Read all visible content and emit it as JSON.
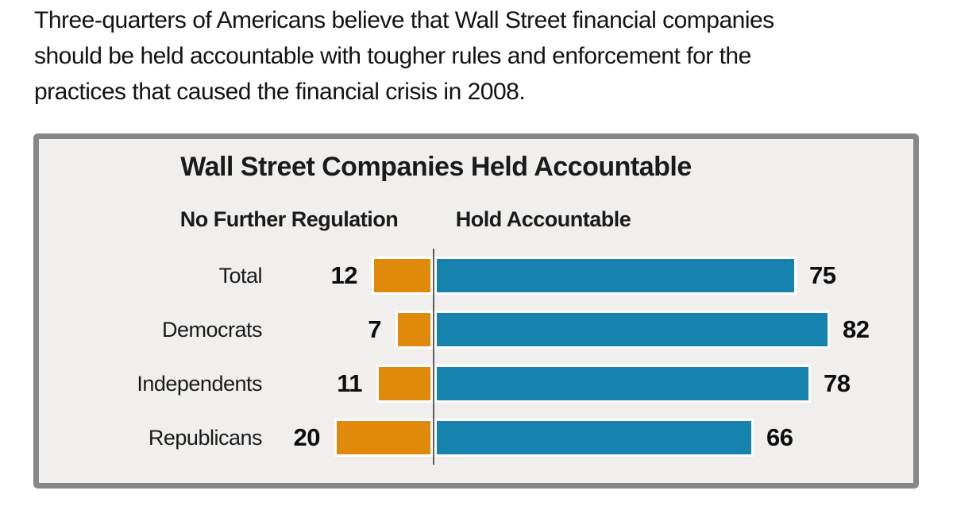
{
  "page": {
    "intro_lines": [
      "Three-quarters of Americans believe that Wall Street financial companies",
      "should be held accountable with tougher rules and enforcement for the",
      "practices that caused the financial crisis in 2008."
    ]
  },
  "chart_data": {
    "type": "bar",
    "orientation": "horizontal-diverging",
    "title": "Wall Street Companies Held Accountable",
    "categories": [
      "Total",
      "Democrats",
      "Independents",
      "Republicans"
    ],
    "series": [
      {
        "name": "No Further Regulation",
        "color": "#e0890b",
        "direction": "left",
        "values": [
          12,
          7,
          11,
          20
        ]
      },
      {
        "name": "Hold Accountable",
        "color": "#1583ae",
        "direction": "right",
        "values": [
          75,
          82,
          78,
          66
        ]
      }
    ],
    "value_labels": "shown-bold-at-bar-ends",
    "axis": {
      "baseline_divider": true,
      "gridlines": false,
      "tick_labels": false,
      "implied_range": [
        0,
        100
      ]
    },
    "frame": {
      "background": "#f0efee",
      "border_color": "#878787",
      "divider_color": "#5f5f5f"
    }
  }
}
